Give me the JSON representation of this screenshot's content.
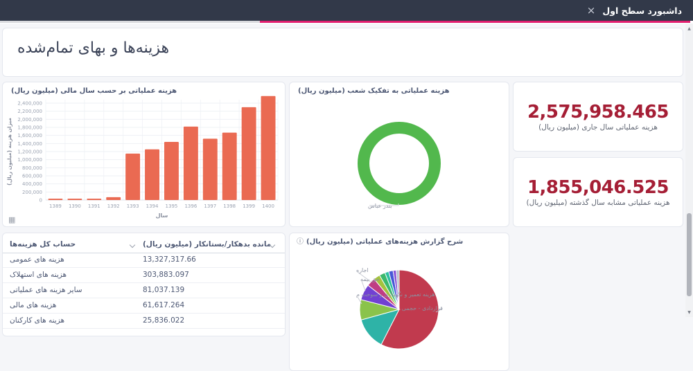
{
  "navbar": {
    "title": "داشبورد سطح اول"
  },
  "page": {
    "title": "هزینه‌ها و بهای تمام‌شده"
  },
  "icons": {
    "close": "×",
    "info": "ⓘ",
    "table_view": "▦",
    "scroll_up": "▲",
    "scroll_down": "▼"
  },
  "colors": {
    "accent_pink": "#e01e6f",
    "navbar_bg": "#323949",
    "bar": "#ea6a52",
    "donut_green": "#52b84d",
    "kpi_red": "#a51e35",
    "axis_text": "#9aa2b1"
  },
  "kpis": [
    {
      "value": "2,575,958.465",
      "label": "هزینه عملیاتی سال جاری (میلیون ریال)"
    },
    {
      "value": "1,855,046.525",
      "label": "هزینه عملیاتی مشابه سال گذشته (میلیون ریال)"
    }
  ],
  "table": {
    "columns": [
      "حساب کل هزینه‌ها",
      "مانده بدهکار/بستانکار (میلیون ریال)"
    ],
    "rows": [
      [
        "هزینه های عمومی",
        "13,327,317.66"
      ],
      [
        "هزینه های استهلاک",
        "303,883.097"
      ],
      [
        "سایر هزینه های عملیاتی",
        "81,037.139"
      ],
      [
        "هزینه های مالی",
        "61,617.264"
      ],
      [
        "هزینه های کارکنان",
        "25,836.022"
      ]
    ]
  },
  "chart_data": [
    {
      "type": "bar",
      "title": "هزینه عملیاتی بر حسب سال مالی (میلیون ریال)",
      "xlabel": "سال",
      "ylabel": "میزان هزینه (میلیون ریال)",
      "categories": [
        "1389",
        "1390",
        "1391",
        "1392",
        "1393",
        "1394",
        "1395",
        "1396",
        "1397",
        "1398",
        "1399",
        "1400"
      ],
      "values": [
        20000,
        20000,
        18000,
        70000,
        1150000,
        1255000,
        1440000,
        1820000,
        1520000,
        1670000,
        2300000,
        2575958
      ],
      "ylim": [
        0,
        2400000
      ],
      "ytick_step": 200000,
      "bar_color": "#ea6a52",
      "grid": true,
      "legend": "none"
    },
    {
      "type": "pie",
      "variant": "donut",
      "title": "هزینه عملیاتی به تفکیک شعب (میلیون ریال)",
      "slices": [
        {
          "label": "بندر عباس",
          "value": 100,
          "color": "#52b84d"
        }
      ],
      "legend": "none"
    },
    {
      "type": "pie",
      "title": "شرح گزارش هزینه‌های عملیاتی (میلیون ریال)",
      "slices": [
        {
          "label": "قراردادی - حجمی",
          "value": 57.5,
          "color": "#c13a4e"
        },
        {
          "label": "",
          "value": 13.2,
          "color": "#2eb3a7"
        },
        {
          "label": "هزینه تعمیر و نگهداری و سوخت م",
          "value": 8.3,
          "color": "#8ac34b"
        },
        {
          "label": "حق بیمه",
          "value": 6.5,
          "color": "#7141d2"
        },
        {
          "label": "اجاره",
          "value": 3.6,
          "color": "#c03d84"
        },
        {
          "label": "",
          "value": 2.6,
          "color": "#a4c33e"
        },
        {
          "label": "",
          "value": 2.4,
          "color": "#3cb96d"
        },
        {
          "label": "",
          "value": 1.6,
          "color": "#2dbfa0"
        },
        {
          "label": "",
          "value": 1.8,
          "color": "#4757d6"
        },
        {
          "label": "",
          "value": 1.3,
          "color": "#8a52d8"
        },
        {
          "label": "",
          "value": 1.2,
          "color": "#b9bdc8"
        }
      ],
      "legend": "none"
    }
  ]
}
